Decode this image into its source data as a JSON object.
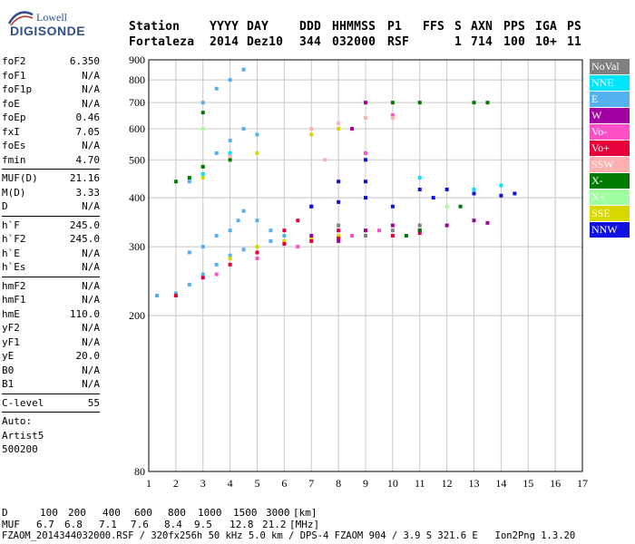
{
  "logo": {
    "line1": "Lowell",
    "line2": "DIGISONDE"
  },
  "header": {
    "labels": [
      "Station",
      "YYYY",
      "DAY",
      "DDD",
      "HHMMSS",
      "P1",
      "FFS",
      "S",
      "AXN",
      "PPS",
      "IGA",
      "PS"
    ],
    "values": [
      "Fortaleza",
      "2014",
      "Dez10",
      "344",
      "032000",
      "RSF",
      "1",
      "714",
      "100",
      "10+",
      "11"
    ]
  },
  "params": {
    "group1": [
      {
        "name": "foF2",
        "value": "6.350"
      },
      {
        "name": "foF1",
        "value": "N/A"
      },
      {
        "name": "foF1p",
        "value": "N/A"
      },
      {
        "name": "foE",
        "value": "N/A"
      },
      {
        "name": "foEp",
        "value": "0.46"
      },
      {
        "name": "fxI",
        "value": "7.05"
      },
      {
        "name": "foEs",
        "value": "N/A"
      },
      {
        "name": "fmin",
        "value": "4.70"
      }
    ],
    "group2": [
      {
        "name": "MUF(D)",
        "value": "21.16"
      },
      {
        "name": "M(D)",
        "value": "3.33"
      },
      {
        "name": "D",
        "value": "N/A"
      }
    ],
    "group3": [
      {
        "name": "h`F",
        "value": "245.0"
      },
      {
        "name": "h`F2",
        "value": "245.0"
      },
      {
        "name": "h`E",
        "value": "N/A"
      },
      {
        "name": "h`Es",
        "value": "N/A"
      }
    ],
    "group4": [
      {
        "name": "hmF2",
        "value": "N/A"
      },
      {
        "name": "hmF1",
        "value": "N/A"
      },
      {
        "name": "hmE",
        "value": "110.0"
      },
      {
        "name": "yF2",
        "value": "N/A"
      },
      {
        "name": "yF1",
        "value": "N/A"
      },
      {
        "name": "yE",
        "value": "20.0"
      },
      {
        "name": "B0",
        "value": "N/A"
      },
      {
        "name": "B1",
        "value": "N/A"
      }
    ],
    "group5": [
      {
        "name": "C-level",
        "value": "55"
      }
    ],
    "auto": [
      "Auto:",
      "Artist5",
      "500200"
    ]
  },
  "legend": [
    {
      "label": "NoVal",
      "color": "#808080"
    },
    {
      "label": "NNE",
      "color": "#00e5ff"
    },
    {
      "label": "E",
      "color": "#55b0f0"
    },
    {
      "label": "W",
      "color": "#a000a0"
    },
    {
      "label": "Vo-",
      "color": "#ff50c8"
    },
    {
      "label": "Vo+",
      "color": "#e8003a"
    },
    {
      "label": "SSW",
      "color": "#ffb0b0"
    },
    {
      "label": "X-",
      "color": "#007a00"
    },
    {
      "label": "X+",
      "color": "#a0ffa0"
    },
    {
      "label": "SSE",
      "color": "#d8d800"
    },
    {
      "label": "NNW",
      "color": "#1010e0"
    }
  ],
  "bottom": {
    "d_label": "D",
    "d_values": [
      "100",
      "200",
      "400",
      "600",
      "800",
      "1000",
      "1500",
      "3000",
      "[km]"
    ],
    "muf_label": "MUF",
    "muf_values": [
      "6.7",
      "6.8",
      "7.1",
      "7.6",
      "8.4",
      "9.5",
      "12.8",
      "21.2",
      "[MHz]"
    ],
    "footer": "FZAOM_2014344032000.RSF / 320fx256h 50 kHz 5.0 km / DPS-4 FZAOM 904 / 3.9 S 321.6 E   Ion2Png 1.3.20"
  },
  "chart_data": {
    "type": "scatter",
    "title": "",
    "xlabel": "",
    "ylabel": "",
    "xlim": [
      1,
      17
    ],
    "ylim": [
      80,
      900
    ],
    "y_scale": "log",
    "x_ticks": [
      1,
      2,
      3,
      4,
      5,
      6,
      7,
      8,
      9,
      10,
      11,
      12,
      13,
      14,
      15,
      16,
      17
    ],
    "y_ticks": [
      80,
      200,
      300,
      400,
      500,
      600,
      700,
      800,
      900
    ],
    "grid": true,
    "series": [
      {
        "name": "E",
        "points": [
          [
            1.3,
            225
          ],
          [
            2,
            228
          ],
          [
            2.5,
            240
          ],
          [
            3,
            255
          ],
          [
            3.5,
            270
          ],
          [
            4,
            285
          ],
          [
            4.5,
            295
          ],
          [
            5,
            300
          ],
          [
            5.5,
            310
          ],
          [
            6,
            320
          ],
          [
            2.5,
            290
          ],
          [
            3,
            300
          ],
          [
            3.5,
            320
          ],
          [
            4,
            330
          ],
          [
            4.3,
            350
          ],
          [
            4.5,
            370
          ],
          [
            5,
            350
          ],
          [
            5.5,
            330
          ],
          [
            2.5,
            440
          ],
          [
            3,
            480
          ],
          [
            3.5,
            520
          ],
          [
            4,
            560
          ],
          [
            4.5,
            600
          ],
          [
            5,
            580
          ],
          [
            3,
            700
          ],
          [
            3.5,
            760
          ],
          [
            4,
            800
          ],
          [
            4.5,
            850
          ]
        ]
      },
      {
        "name": "SSE",
        "points": [
          [
            4,
            280
          ],
          [
            5,
            300
          ],
          [
            6,
            310
          ],
          [
            7,
            315
          ],
          [
            8,
            320
          ],
          [
            3,
            450
          ],
          [
            4,
            500
          ],
          [
            5,
            520
          ],
          [
            7,
            580
          ],
          [
            8,
            600
          ]
        ]
      },
      {
        "name": "Vo+",
        "points": [
          [
            2,
            225
          ],
          [
            3,
            250
          ],
          [
            4,
            270
          ],
          [
            5,
            290
          ],
          [
            6,
            305
          ],
          [
            7,
            310
          ],
          [
            8,
            315
          ],
          [
            9,
            320
          ],
          [
            10,
            320
          ],
          [
            11,
            325
          ],
          [
            6,
            330
          ],
          [
            6.5,
            350
          ],
          [
            7,
            380
          ],
          [
            8,
            330
          ]
        ]
      },
      {
        "name": "Vo-",
        "points": [
          [
            3.5,
            255
          ],
          [
            5,
            280
          ],
          [
            6.5,
            300
          ],
          [
            8.5,
            320
          ],
          [
            9.5,
            330
          ],
          [
            11,
            330
          ],
          [
            10,
            650
          ],
          [
            9,
            520
          ]
        ]
      },
      {
        "name": "W",
        "points": [
          [
            7,
            320
          ],
          [
            8,
            310
          ],
          [
            9,
            330
          ],
          [
            10,
            340
          ],
          [
            11,
            330
          ],
          [
            12,
            340
          ],
          [
            13,
            350
          ],
          [
            13.5,
            345
          ],
          [
            8.5,
            600
          ],
          [
            9,
            700
          ]
        ]
      },
      {
        "name": "NNW",
        "points": [
          [
            7,
            380
          ],
          [
            8,
            390
          ],
          [
            9,
            400
          ],
          [
            10,
            380
          ],
          [
            11,
            420
          ],
          [
            12,
            420
          ],
          [
            13,
            410
          ],
          [
            14,
            405
          ],
          [
            14.5,
            410
          ],
          [
            8,
            440
          ],
          [
            9,
            440
          ],
          [
            9,
            500
          ],
          [
            11.5,
            400
          ]
        ]
      },
      {
        "name": "X-",
        "points": [
          [
            2,
            440
          ],
          [
            2.5,
            450
          ],
          [
            3,
            480
          ],
          [
            4,
            500
          ],
          [
            10.5,
            320
          ],
          [
            11,
            330
          ],
          [
            12.5,
            380
          ],
          [
            13,
            700
          ],
          [
            13.5,
            700
          ],
          [
            10,
            700
          ],
          [
            11,
            700
          ],
          [
            3,
            660
          ]
        ]
      },
      {
        "name": "NNE",
        "points": [
          [
            3,
            460
          ],
          [
            4,
            520
          ],
          [
            11,
            450
          ],
          [
            13,
            420
          ],
          [
            14,
            430
          ]
        ]
      },
      {
        "name": "SSW",
        "points": [
          [
            4,
            510
          ],
          [
            7,
            600
          ],
          [
            8,
            620
          ],
          [
            9,
            640
          ],
          [
            10,
            640
          ],
          [
            7.5,
            500
          ]
        ]
      },
      {
        "name": "NoVal",
        "points": [
          [
            8,
            340
          ],
          [
            9,
            320
          ],
          [
            10,
            330
          ],
          [
            11,
            340
          ]
        ]
      },
      {
        "name": "X+",
        "points": [
          [
            3,
            600
          ],
          [
            12,
            380
          ]
        ]
      }
    ]
  }
}
